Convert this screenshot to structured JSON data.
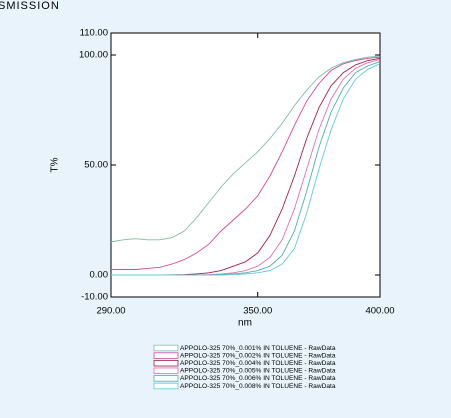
{
  "chart_data": {
    "type": "line",
    "title": "SMISSION",
    "y_label": "T%",
    "x_label": "nm",
    "x": [
      290,
      295,
      300,
      305,
      310,
      315,
      320,
      325,
      330,
      335,
      340,
      345,
      350,
      355,
      360,
      365,
      370,
      375,
      380,
      385,
      390,
      395,
      400
    ],
    "xlim": [
      290,
      400
    ],
    "xticks": [
      {
        "value": 290,
        "label": "290.00"
      },
      {
        "value": 350,
        "label": "350.00"
      },
      {
        "value": 400,
        "label": "400.00"
      }
    ],
    "ylim": [
      -10,
      110
    ],
    "yticks": [
      {
        "value": -10,
        "label": "-10.00"
      },
      {
        "value": 0,
        "label": "0.00"
      },
      {
        "value": 50,
        "label": "50.00"
      },
      {
        "value": 100,
        "label": "100.00"
      },
      {
        "value": 110,
        "label": "110.00"
      }
    ],
    "series": [
      {
        "name": "APPOLO-325 70%_0.001% IN TOLUENE - RawData",
        "color": "#7fbf9f",
        "values": [
          15,
          16,
          16.5,
          16,
          16,
          17,
          20,
          26,
          33,
          40,
          46,
          51,
          56,
          62,
          69,
          77,
          84,
          90,
          94,
          96.5,
          98,
          99,
          99.5
        ]
      },
      {
        "name": "APPOLO-325 70%_0.002% IN TOLUENE - RawData",
        "color": "#d04a9a",
        "values": [
          2.5,
          2.5,
          2.5,
          3,
          3.5,
          5,
          7,
          10,
          14,
          20,
          25,
          30,
          36,
          45,
          56,
          68,
          79,
          87,
          93,
          96,
          97.5,
          98.5,
          99
        ]
      },
      {
        "name": "APPOLO-325 70%_0.004% IN TOLUENE - RawData",
        "color": "#a0204a",
        "values": [
          0,
          0,
          0,
          0,
          0,
          0.1,
          0.2,
          0.5,
          1,
          2,
          4,
          6,
          10,
          18,
          30,
          45,
          62,
          76,
          86,
          92,
          95.5,
          97.5,
          98.5
        ]
      },
      {
        "name": "APPOLO-325 70%_0.005% IN TOLUENE - RawData",
        "color": "#e070b0",
        "values": [
          0,
          0,
          0,
          0,
          0,
          0,
          0,
          0,
          0.2,
          0.5,
          1,
          2,
          4,
          8,
          16,
          30,
          48,
          66,
          80,
          89,
          94,
          96.5,
          98
        ]
      },
      {
        "name": "APPOLO-325 70%_0.006% IN TOLUENE - RawData",
        "color": "#50b0a0",
        "values": [
          0,
          0,
          0,
          0,
          0,
          0,
          0,
          0,
          0,
          0.2,
          0.5,
          1,
          2,
          4,
          9,
          20,
          38,
          58,
          74,
          85,
          92,
          95,
          97
        ]
      },
      {
        "name": "APPOLO-325 70%_0.008% IN TOLUENE - RawData",
        "color": "#60c8e0",
        "values": [
          0,
          0,
          0,
          0,
          0,
          0,
          0,
          0,
          0,
          0,
          0.2,
          0.5,
          1,
          2,
          5,
          12,
          28,
          48,
          66,
          80,
          89,
          93.5,
          96
        ]
      }
    ],
    "grid": false
  }
}
